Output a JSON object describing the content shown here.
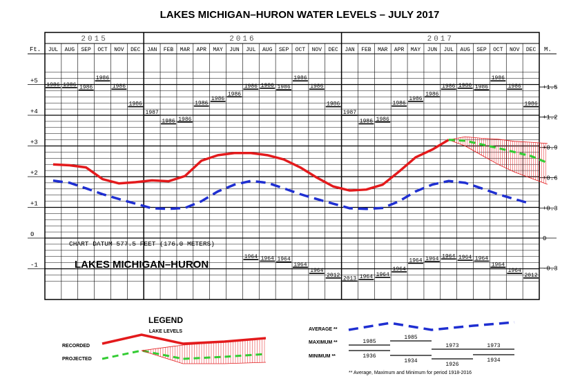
{
  "title": "LAKES MICHIGAN–HURON WATER LEVELS – JULY 2017",
  "left_unit": "Ft.",
  "right_unit": "M.",
  "chart_datum": "CHART DATUM  577.5 FEET (176.0 METERS)",
  "lake_name": "LAKES MICHIGAN–HURON",
  "colors": {
    "recorded": "#e31a1c",
    "average": "#1f2fd1",
    "projected": "#33cc33",
    "hatch": "#e31a1c"
  },
  "chart_data": {
    "type": "line",
    "years": [
      "2015",
      "2016",
      "2017"
    ],
    "months": [
      "JUL",
      "AUG",
      "SEP",
      "OCT",
      "NOV",
      "DEC",
      "JAN",
      "FEB",
      "MAR",
      "APR",
      "MAY",
      "JUN",
      "JUL",
      "AUG",
      "SEP",
      "OCT",
      "NOV",
      "DEC",
      "JAN",
      "FEB",
      "MAR",
      "APR",
      "MAY",
      "JUN",
      "JUL",
      "AUG",
      "SEP",
      "OCT",
      "NOV",
      "DEC"
    ],
    "ylim_ft": [
      -2,
      6
    ],
    "ft_ticks": [
      "+5",
      "+4",
      "+3",
      "+2",
      "+1",
      "0",
      "-1"
    ],
    "ft_tick_values": [
      5,
      4,
      3,
      2,
      1,
      0,
      -1
    ],
    "m_ticks": [
      "+1.5",
      "+1.2",
      "+0.9",
      "+0.6",
      "+0.3",
      "0",
      "-0.3"
    ],
    "m_tick_values_ft": [
      4.92,
      3.94,
      2.95,
      1.97,
      0.98,
      0,
      -0.98
    ],
    "recorded": [
      2.4,
      2.37,
      2.3,
      1.92,
      1.78,
      1.82,
      1.88,
      1.85,
      2.02,
      2.52,
      2.7,
      2.77,
      2.77,
      2.7,
      2.56,
      2.3,
      1.97,
      1.68,
      1.55,
      1.58,
      1.74,
      2.17,
      2.63,
      2.88,
      3.2
    ],
    "projected": [
      3.2,
      3.17,
      3.05,
      2.93,
      2.8,
      2.67,
      2.45
    ],
    "projected_upper": [
      3.2,
      3.3,
      3.25,
      3.22,
      3.15,
      3.12,
      3.08
    ],
    "projected_lower": [
      3.2,
      3.0,
      2.7,
      2.4,
      2.15,
      1.95,
      1.75
    ],
    "average": [
      1.87,
      1.8,
      1.62,
      1.43,
      1.27,
      1.12,
      0.97,
      0.95,
      0.98,
      1.2,
      1.52,
      1.74,
      1.86,
      1.8,
      1.62,
      1.43,
      1.27,
      1.12,
      0.97,
      0.95,
      0.98,
      1.2,
      1.52,
      1.74,
      1.86,
      1.8,
      1.62,
      1.43,
      1.27,
      1.12
    ],
    "maximum": [
      4.9,
      4.9,
      4.82,
      5.12,
      4.85,
      4.28,
      4.0,
      3.72,
      3.78,
      4.3,
      4.45,
      4.6,
      4.85,
      4.88,
      4.83,
      5.12,
      4.85,
      4.28,
      4.0,
      3.72,
      3.78,
      4.3,
      4.45,
      4.6,
      4.85,
      4.88,
      4.83,
      5.12,
      4.85,
      4.28
    ],
    "maximum_years": [
      "1986",
      "1986",
      "1986",
      "1986",
      "1986",
      "1986",
      "1987",
      "1986",
      "1986",
      "1986",
      "1986",
      "1986",
      "1986",
      "1986",
      "1986",
      "1986",
      "1986",
      "1986",
      "1987",
      "1986",
      "1986",
      "1986",
      "1986",
      "1986",
      "1986",
      "1986",
      "1986",
      "1986",
      "1986",
      "1986"
    ],
    "minimum": [
      null,
      null,
      null,
      null,
      null,
      null,
      null,
      null,
      null,
      null,
      null,
      null,
      -0.7,
      -0.75,
      -0.78,
      -0.95,
      -1.15,
      -1.3,
      -1.4,
      -1.35,
      -1.28,
      -1.1,
      -0.82,
      -0.76,
      -0.68,
      -0.72,
      -0.75,
      -0.95,
      -1.15,
      -1.3
    ],
    "minimum_years": [
      null,
      null,
      null,
      null,
      null,
      null,
      null,
      null,
      null,
      null,
      null,
      null,
      "1964",
      "1964",
      "1964",
      "1964",
      "1964",
      "2012",
      "2013",
      "1964",
      "1964",
      "1964",
      "1964",
      "1964",
      "1964",
      "1964",
      "1964",
      "1964",
      "1964",
      "2012"
    ]
  },
  "legend": {
    "title": "LEGEND",
    "lake_levels": "LAKE LEVELS",
    "recorded": "RECORDED",
    "projected": "PROJECTED",
    "average": "AVERAGE **",
    "maximum": "MAXIMUM  **",
    "minimum": "MINIMUM  **",
    "max_years": [
      "1985",
      "1985",
      "1973",
      "1973"
    ],
    "min_years": [
      "1936",
      "1934",
      "1926",
      "1934"
    ],
    "footnote": "** Average, Maximum and Minimum for period 1918-2016"
  }
}
